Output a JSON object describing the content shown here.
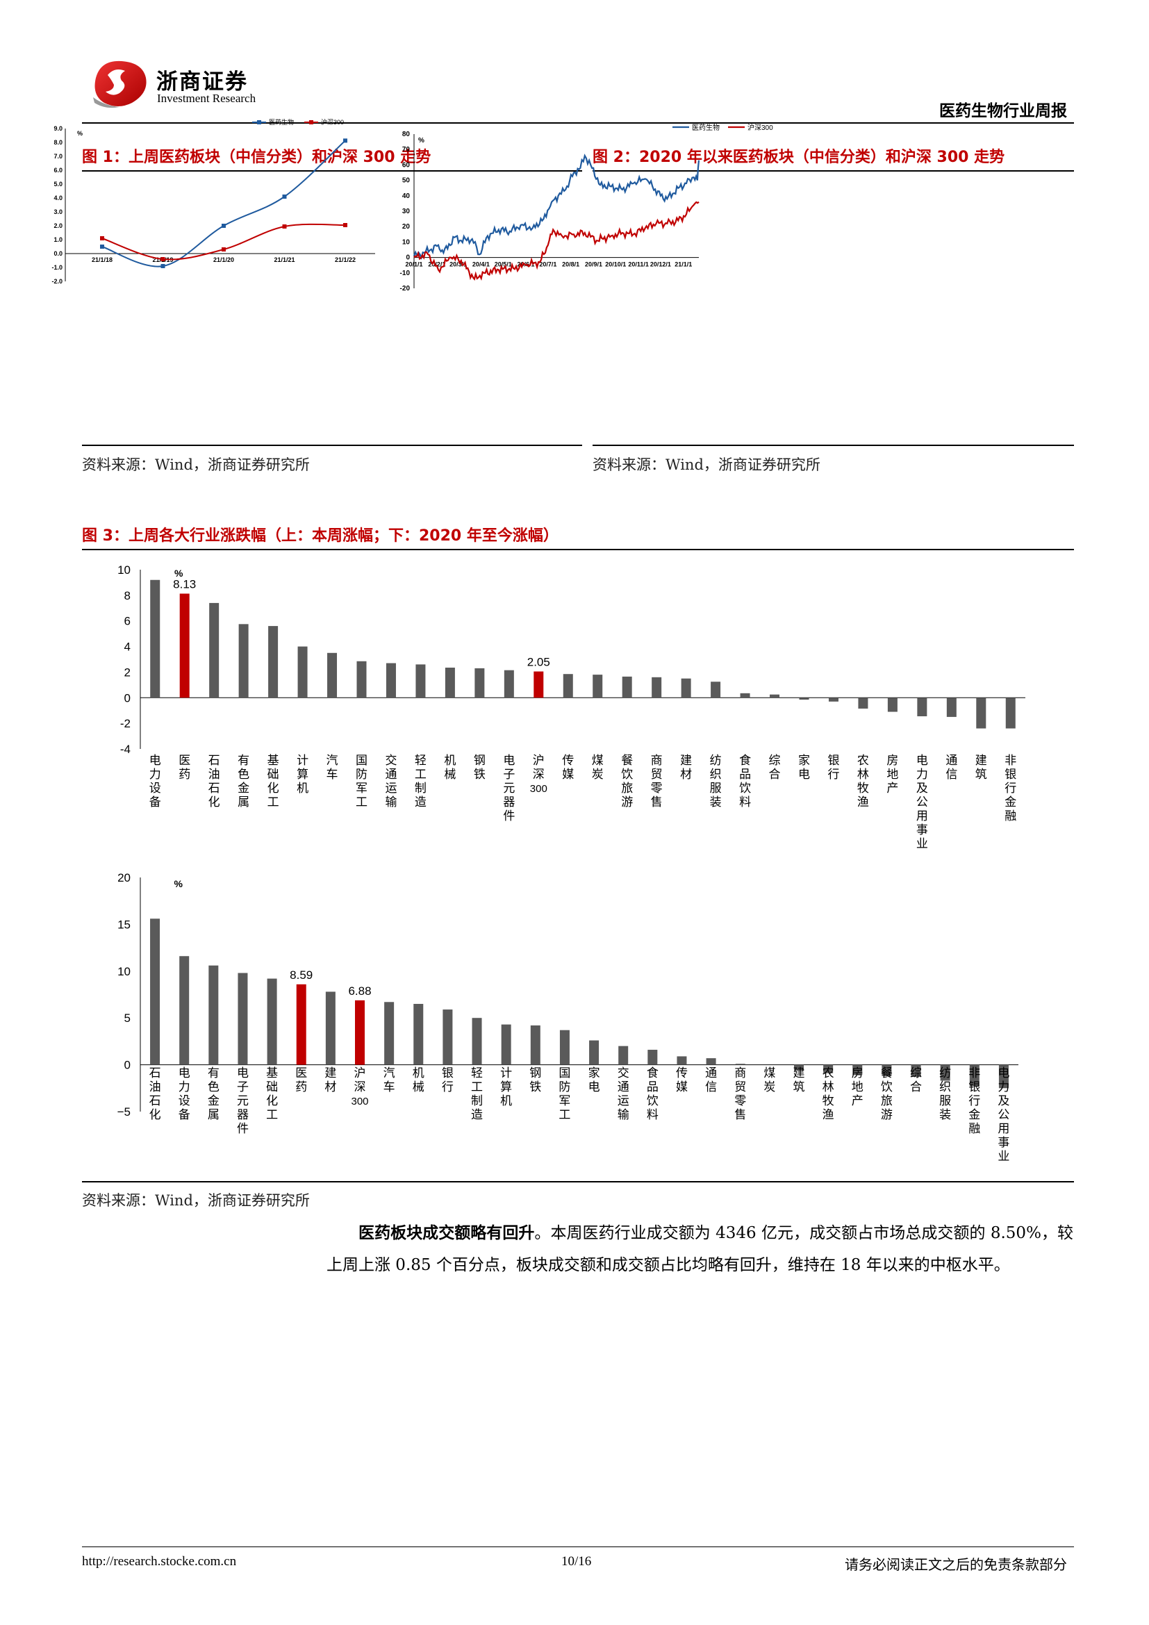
{
  "header": {
    "company": "浙商证券",
    "company_en": "Investment Research",
    "report_title": "医药生物行业周报"
  },
  "fig1": {
    "title": "图 1：上周医药板块（中信分类）和沪深 300 走势",
    "source": "资料来源：Wind，浙商证券研究所",
    "chart_data": {
      "type": "line",
      "unit": "%",
      "x": [
        "21/1/18",
        "21/1/19",
        "21/1/20",
        "21/1/21",
        "21/1/22"
      ],
      "ylim": [
        -2.0,
        9.0
      ],
      "yticks": [
        "9.0",
        "8.0",
        "7.0",
        "6.0",
        "5.0",
        "4.0",
        "3.0",
        "2.0",
        "1.0",
        "0.0",
        "-1.0",
        "-2.0"
      ],
      "legend_position": "top",
      "series": [
        {
          "name": "医药生物",
          "color": "#1f5a9e",
          "values": [
            0.5,
            -0.9,
            2.0,
            4.1,
            8.13
          ]
        },
        {
          "name": "沪深300",
          "color": "#c00000",
          "values": [
            1.1,
            -0.4,
            0.3,
            1.95,
            2.05
          ]
        }
      ]
    }
  },
  "fig2": {
    "title": "图 2：2020 年以来医药板块（中信分类）和沪深 300 走势",
    "source": "资料来源：Wind，浙商证券研究所",
    "chart_data": {
      "type": "line",
      "unit": "%",
      "xticks": [
        "2020/1/1",
        "2020/2/1",
        "2020/3/1",
        "2020/4/1",
        "2020/5/1",
        "2020/6/1",
        "2020/7/1",
        "2020/8/1",
        "2020/9/1",
        "2020/10/1",
        "2020/11/1",
        "2020/12/1",
        "2021/1/1"
      ],
      "ylim": [
        -20,
        80
      ],
      "yticks": [
        "80",
        "70",
        "60",
        "50",
        "40",
        "30",
        "20",
        "10",
        "0",
        "-10",
        "-20"
      ],
      "legend_position": "top",
      "series": [
        {
          "name": "医药生物",
          "color": "#1f5a9e",
          "x": [
            "2020/1/1",
            "2020/1/15",
            "2020/2/3",
            "2020/2/10",
            "2020/2/25",
            "2020/3/5",
            "2020/3/20",
            "2020/3/30",
            "2020/4/10",
            "2020/4/25",
            "2020/5/10",
            "2020/5/25",
            "2020/6/10",
            "2020/6/25",
            "2020/7/6",
            "2020/7/15",
            "2020/7/25",
            "2020/8/5",
            "2020/8/14",
            "2020/8/20",
            "2020/8/28",
            "2020/9/10",
            "2020/9/25",
            "2020/10/10",
            "2020/10/25",
            "2020/11/10",
            "2020/11/20",
            "2020/12/1",
            "2020/12/10",
            "2020/12/25",
            "2021/1/5",
            "2021/1/15",
            "2021/1/20",
            "2021/1/22"
          ],
          "values": [
            1,
            3,
            8,
            3,
            13,
            11,
            12,
            2,
            14,
            18,
            17,
            21,
            19,
            25,
            36,
            40,
            44,
            55,
            58,
            66,
            60,
            47,
            46,
            44,
            48,
            51,
            46,
            40,
            38,
            45,
            48,
            52,
            50,
            63
          ]
        },
        {
          "name": "沪深300",
          "color": "#c00000",
          "x": [
            "2020/1/1",
            "2020/1/20",
            "2020/2/3",
            "2020/2/20",
            "2020/3/5",
            "2020/3/23",
            "2020/4/5",
            "2020/4/25",
            "2020/5/15",
            "2020/6/1",
            "2020/6/20",
            "2020/7/1",
            "2020/7/8",
            "2020/7/20",
            "2020/8/5",
            "2020/8/20",
            "2020/9/5",
            "2020/9/25",
            "2020/10/10",
            "2020/10/25",
            "2020/11/10",
            "2020/11/25",
            "2020/12/10",
            "2020/12/25",
            "2021/1/5",
            "2021/1/15",
            "2021/1/22"
          ],
          "values": [
            0,
            2,
            -8,
            0,
            -2,
            -14,
            -10,
            -8,
            -7,
            -5,
            -3,
            8,
            18,
            14,
            15,
            16,
            11,
            14,
            16,
            15,
            19,
            22,
            22,
            24,
            28,
            34,
            36
          ]
        }
      ]
    }
  },
  "fig3": {
    "title": "图 3：上周各大行业涨跌幅（上：本周涨幅；下：2020 年至今涨幅）",
    "source": "资料来源：Wind，浙商证券研究所",
    "chart_data": [
      {
        "type": "bar",
        "unit": "%",
        "ylim": [
          -4,
          10
        ],
        "yticks": [
          "10",
          "8",
          "6",
          "4",
          "2",
          "0",
          "-2",
          "-4"
        ],
        "categories": [
          "电力设备",
          "医药",
          "石油石化",
          "有色金属",
          "基础化工",
          "计算机",
          "汽车",
          "国防军工",
          "交通运输",
          "轻工制造",
          "机械",
          "钢铁",
          "电子元器件",
          "沪深300",
          "传媒",
          "煤炭",
          "餐饮旅游",
          "商贸零售",
          "建材",
          "纺织服装",
          "食品饮料",
          "综合",
          "家电",
          "银行",
          "农林牧渔",
          "房地产",
          "电力及公用事业",
          "通信",
          "建筑",
          "非银行金融"
        ],
        "values": [
          9.2,
          8.13,
          7.4,
          5.75,
          5.6,
          4.0,
          3.5,
          2.85,
          2.7,
          2.6,
          2.35,
          2.3,
          2.15,
          2.05,
          1.85,
          1.8,
          1.65,
          1.6,
          1.5,
          1.25,
          0.35,
          0.25,
          -0.15,
          -0.3,
          -0.85,
          -1.1,
          -1.45,
          -1.5,
          -2.4,
          -2.4
        ],
        "highlight": [
          "医药",
          "沪深300"
        ],
        "data_labels": {
          "医药": "8.13",
          "沪深300": "2.05"
        },
        "colors": {
          "default": "#5a5a5a",
          "highlight": "#c00000"
        }
      },
      {
        "type": "bar",
        "unit": "%",
        "ylim": [
          -5,
          20
        ],
        "yticks": [
          "20",
          "15",
          "10",
          "5",
          "0",
          "−5"
        ],
        "categories": [
          "石油石化",
          "电力设备",
          "有色金属",
          "电子元器件",
          "基础化工",
          "医药",
          "建材",
          "沪深300",
          "汽车",
          "机械",
          "银行",
          "轻工制造",
          "计算机",
          "钢铁",
          "国防军工",
          "家电",
          "交通运输",
          "食品饮料",
          "传媒",
          "通信",
          "商贸零售",
          "煤炭",
          "建筑",
          "农林牧渔",
          "房地产",
          "餐饮旅游",
          "综合",
          "纺织服装",
          "非银行金融",
          "电力及公用事业"
        ],
        "values": [
          15.6,
          11.6,
          10.6,
          9.8,
          9.2,
          8.59,
          7.8,
          6.88,
          6.7,
          6.5,
          5.9,
          5.0,
          4.3,
          4.2,
          3.7,
          2.6,
          2.0,
          1.6,
          0.9,
          0.7,
          0.1,
          0.0,
          -0.6,
          -0.9,
          -1.1,
          -1.2,
          -1.3,
          -1.7,
          -2.3,
          -2.5
        ],
        "highlight": [
          "医药",
          "沪深300"
        ],
        "data_labels": {
          "医药": "8.59",
          "沪深300": "6.88"
        },
        "colors": {
          "default": "#5a5a5a",
          "highlight": "#c00000"
        }
      }
    ]
  },
  "paragraph": {
    "bold": "医药板块成交额略有回升",
    "text": "。本周医药行业成交额为 4346 亿元，成交额占市场总成交额的 8.50%，较上周上涨 0.85 个百分点，板块成交额和成交额占比均略有回升，维持在 18 年以来的中枢水平。"
  },
  "footer": {
    "url": "http://research.stocke.com.cn",
    "page": "10/16",
    "disclaimer": "请务必阅读正文之后的免责条款部分"
  },
  "colors": {
    "accent": "#c00000",
    "blue": "#1f5a9e",
    "bar": "#5a5a5a"
  }
}
